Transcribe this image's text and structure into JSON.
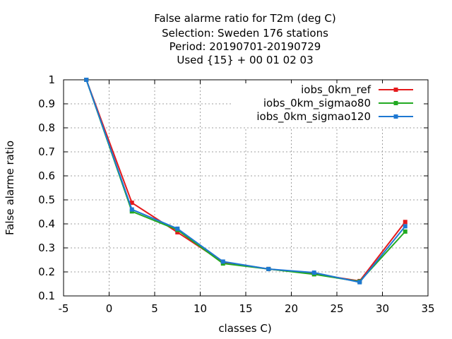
{
  "chart_data": {
    "type": "line",
    "title_lines": [
      "False alarme ratio  for T2m (deg C)",
      "Selection: Sweden    176 stations",
      "Period: 20190701-20190729",
      "Used {15} + 00 01 02 03"
    ],
    "xlabel": "classes C)",
    "ylabel": "False alarme ratio",
    "xlim": [
      -5,
      35
    ],
    "ylim": [
      0.1,
      1
    ],
    "x_ticks": [
      -5,
      0,
      5,
      10,
      15,
      20,
      25,
      30,
      35
    ],
    "y_ticks": [
      0.1,
      0.2,
      0.3,
      0.4,
      0.5,
      0.6,
      0.7,
      0.8,
      0.9,
      1
    ],
    "grid": true,
    "legend_position": "top-right",
    "x": [
      -2.5,
      2.5,
      7.5,
      12.5,
      17.5,
      22.5,
      27.5,
      32.5
    ],
    "series": [
      {
        "name": "iobs_0km_ref",
        "color": "#e41a1c",
        "values": [
          1.0,
          0.488,
          0.365,
          0.24,
          0.212,
          0.192,
          0.162,
          0.408
        ]
      },
      {
        "name": "iobs_0km_sigmao80",
        "color": "#22aa22",
        "values": [
          1.0,
          0.452,
          0.375,
          0.235,
          0.212,
          0.19,
          0.16,
          0.368
        ]
      },
      {
        "name": "iobs_0km_sigmao120",
        "color": "#1e78d2",
        "values": [
          1.0,
          0.46,
          0.38,
          0.243,
          0.212,
          0.197,
          0.157,
          0.39
        ]
      }
    ]
  }
}
